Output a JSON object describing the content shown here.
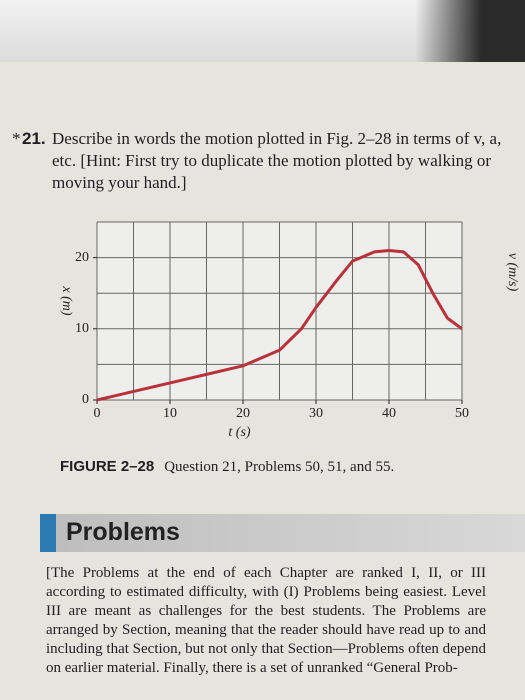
{
  "question": {
    "star": "*",
    "number": "21.",
    "text": "Describe in words the motion plotted in Fig. 2–28 in terms of v, a, etc. [Hint: First try to duplicate the motion plotted by walking or moving your hand.]"
  },
  "chart_data": {
    "type": "line",
    "x_label": "t (s)",
    "y_label": "x (m)",
    "side_label": "v (m/s)",
    "x": [
      0,
      5,
      10,
      15,
      20,
      25,
      28,
      30,
      33,
      35,
      38,
      40,
      42,
      44,
      46,
      48,
      50
    ],
    "series": [
      {
        "color": "#b8323a",
        "values": [
          0,
          1.2,
          2.4,
          3.6,
          4.8,
          7,
          10,
          13,
          17,
          19.5,
          20.8,
          21,
          20.8,
          19,
          15,
          11.5,
          10
        ]
      }
    ],
    "xlim": [
      0,
      50
    ],
    "ylim": [
      0,
      25
    ],
    "xticks": [
      0,
      10,
      20,
      30,
      40,
      50
    ],
    "yticks": [
      0,
      10,
      20
    ],
    "xgrid": [
      0,
      5,
      10,
      15,
      20,
      25,
      30,
      35,
      40,
      45,
      50
    ],
    "ygrid": [
      0,
      5,
      10,
      15,
      20,
      25
    ]
  },
  "caption": {
    "label": "FIGURE 2–28",
    "text": "Question 21, Problems 50, 51, and 55."
  },
  "section": {
    "title": "Problems",
    "text": "[The Problems at the end of each Chapter are ranked I, II, or III according to estimated difficulty, with (I) Problems being easiest. Level III are meant as challenges for the best students. The Problems are arranged by Section, meaning that the reader should have read up to and including that Section, but not only that Section—Problems often depend on earlier material. Finally, there is a set of unranked “General Prob-"
  }
}
